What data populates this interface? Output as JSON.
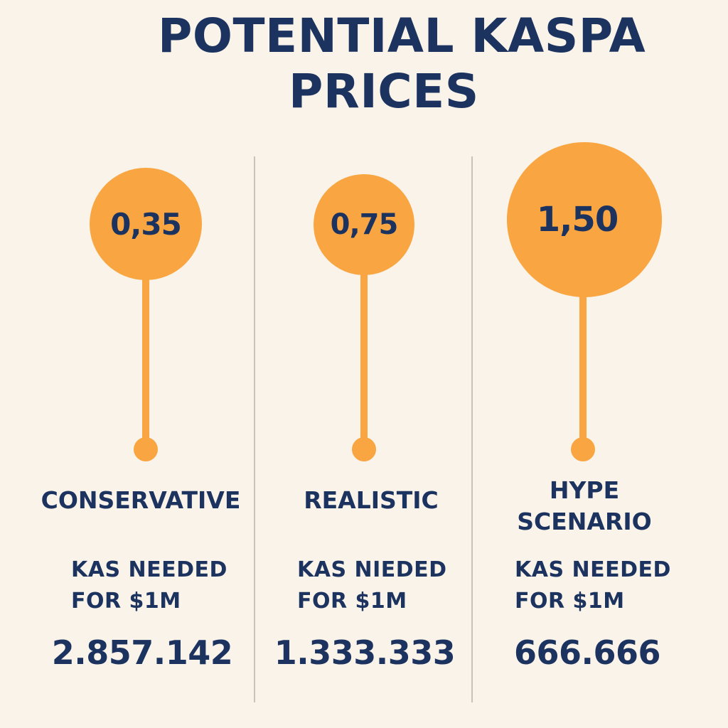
{
  "title": {
    "line1": "POTENTIAL KASPA",
    "line2": "PRICES"
  },
  "colors": {
    "background": "#f9f3e9",
    "accent": "#f9a541",
    "text": "#1c3360",
    "divider": "#c6c3bd"
  },
  "scenarios": [
    {
      "price": "0,35",
      "label_line1": "CONSERVATIVE",
      "label_line2": "",
      "needed_line1": "KAS NEEDED",
      "needed_line2": "FOR $1M",
      "amount": "2.857.142"
    },
    {
      "price": "0,75",
      "label_line1": "REALISTIC",
      "label_line2": "",
      "needed_line1": "KAS NIEDED",
      "needed_line2": "FOR $1M",
      "amount": "1.333.333"
    },
    {
      "price": "1,50",
      "label_line1": "HYPE",
      "label_line2": "SCENARIO",
      "needed_line1": "KAS NEEDED",
      "needed_line2": "FOR $1M",
      "amount": "666.666"
    }
  ]
}
